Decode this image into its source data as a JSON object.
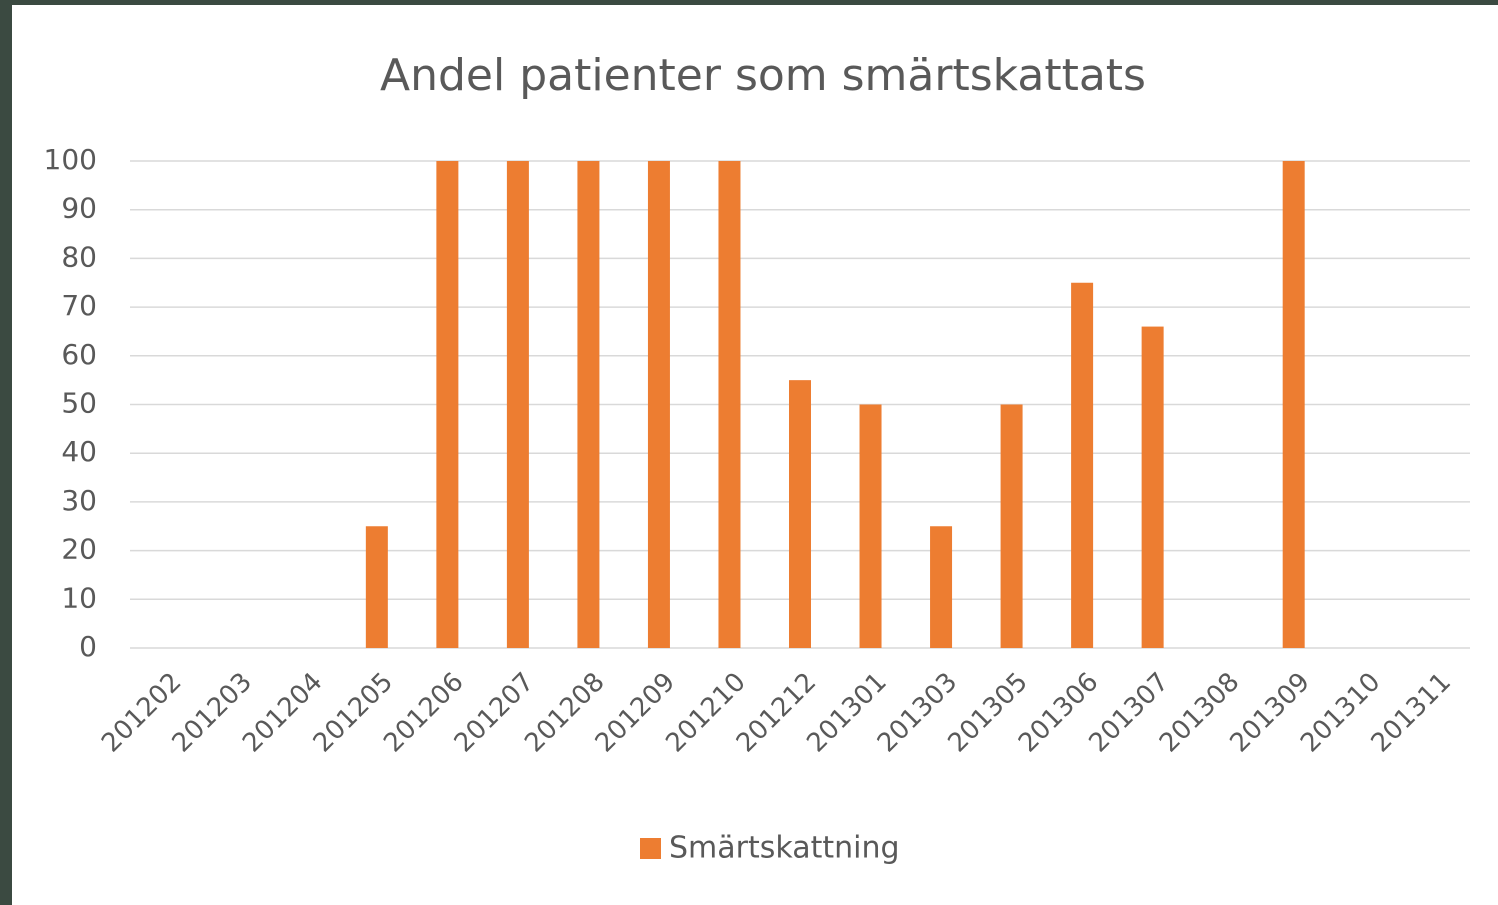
{
  "chart_data": {
    "type": "bar",
    "title": "Andel patienter som smärtskattats",
    "categories": [
      "201202",
      "201203",
      "201204",
      "201205",
      "201206",
      "201207",
      "201208",
      "201209",
      "201210",
      "201212",
      "201301",
      "201303",
      "201305",
      "201306",
      "201307",
      "201308",
      "201309",
      "201310",
      "201311"
    ],
    "series": [
      {
        "name": "Smärtskattning",
        "color": "#ed7d31",
        "values": [
          0,
          0,
          0,
          25,
          100,
          100,
          100,
          100,
          100,
          55,
          50,
          25,
          50,
          75,
          66,
          0,
          100,
          0,
          0
        ]
      }
    ],
    "ylim": [
      0,
      100
    ],
    "yticks": [
      0,
      10,
      20,
      30,
      40,
      50,
      60,
      70,
      80,
      90,
      100
    ],
    "grid": true,
    "legend": "bottom"
  }
}
